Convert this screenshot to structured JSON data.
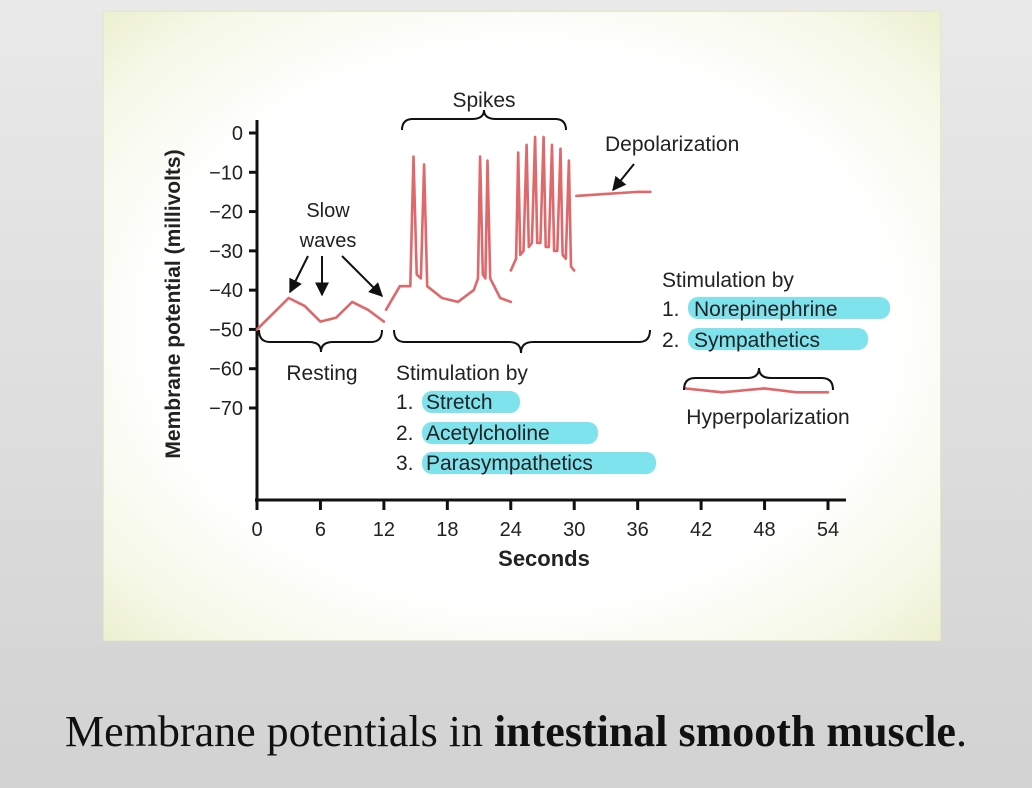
{
  "caption": {
    "prefix": "Membrane potentials in ",
    "bold": "intestinal smooth muscle",
    "suffix": "."
  },
  "chart_data": {
    "type": "line",
    "xlabel": "Seconds",
    "ylabel": "Membrane potential (millivolts)",
    "xlim": [
      0,
      54
    ],
    "ylim": [
      -70,
      0
    ],
    "x_ticks": [
      0,
      6,
      12,
      18,
      24,
      30,
      36,
      42,
      48,
      54
    ],
    "y_ticks": [
      0,
      -10,
      -20,
      -30,
      -40,
      -50,
      -60,
      -70
    ],
    "x_tick_labels": [
      "0",
      "6",
      "12",
      "18",
      "24",
      "30",
      "36",
      "42",
      "48",
      "54"
    ],
    "y_tick_labels": [
      "0",
      "−10",
      "−20",
      "−30",
      "−40",
      "−50",
      "−60",
      "−70"
    ],
    "line_color": "#e0686b",
    "highlight_color": "#7fe3ee",
    "series": [
      {
        "values": [
          [
            0,
            -50
          ],
          [
            1.5,
            -46
          ],
          [
            3,
            -42
          ],
          [
            4.5,
            -44
          ],
          [
            6,
            -48
          ],
          [
            7.5,
            -47
          ],
          [
            9,
            -43
          ],
          [
            10.5,
            -45
          ],
          [
            12,
            -48
          ]
        ]
      },
      {
        "values": [
          [
            12.2,
            -45
          ],
          [
            13.5,
            -39
          ],
          [
            14.5,
            -39
          ],
          [
            14.8,
            -6
          ],
          [
            15.1,
            -36
          ],
          [
            15.5,
            -37
          ],
          [
            15.8,
            -8
          ],
          [
            16.1,
            -39
          ],
          [
            17.5,
            -42
          ],
          [
            19,
            -43
          ],
          [
            20.5,
            -40
          ],
          [
            20.9,
            -37
          ],
          [
            21.1,
            -6
          ],
          [
            21.35,
            -36
          ],
          [
            21.6,
            -37
          ],
          [
            21.8,
            -7
          ],
          [
            22.05,
            -37
          ],
          [
            23,
            -42
          ],
          [
            24,
            -43
          ]
        ]
      },
      {
        "values": [
          [
            24,
            -35
          ],
          [
            24.5,
            -32
          ],
          [
            24.7,
            -5
          ],
          [
            24.9,
            -31
          ],
          [
            25.2,
            -30
          ],
          [
            25.5,
            -3
          ],
          [
            25.7,
            -29
          ],
          [
            26,
            -28
          ],
          [
            26.3,
            -1
          ],
          [
            26.5,
            -28
          ],
          [
            26.8,
            -28
          ],
          [
            27.1,
            -1
          ],
          [
            27.3,
            -29
          ],
          [
            27.6,
            -29
          ],
          [
            27.9,
            -3
          ],
          [
            28.1,
            -30
          ],
          [
            28.4,
            -30
          ],
          [
            28.7,
            -4
          ],
          [
            28.9,
            -31
          ],
          [
            29.2,
            -32
          ],
          [
            29.5,
            -7
          ],
          [
            29.7,
            -34
          ],
          [
            30,
            -35
          ]
        ]
      },
      {
        "values": [
          [
            30.2,
            -16
          ],
          [
            33,
            -15.5
          ],
          [
            36,
            -15
          ],
          [
            37.2,
            -15
          ]
        ]
      },
      {
        "values": [
          [
            40.5,
            -65
          ],
          [
            44,
            -66
          ],
          [
            48,
            -65
          ],
          [
            51,
            -66
          ],
          [
            54,
            -66
          ]
        ]
      }
    ],
    "annotations": {
      "slow_waves": [
        "Slow",
        "waves"
      ],
      "spikes": "Spikes",
      "depolarization": "Depolarization",
      "resting": "Resting",
      "stimulation_left": {
        "heading": "Stimulation by",
        "items": [
          {
            "num": "1.",
            "text": "Stretch"
          },
          {
            "num": "2.",
            "text": "Acetylcholine"
          },
          {
            "num": "3.",
            "text": "Parasympathetics"
          }
        ]
      },
      "stimulation_right": {
        "heading": "Stimulation by",
        "items": [
          {
            "num": "1.",
            "text": "Norepinephrine"
          },
          {
            "num": "2.",
            "text": "Sympathetics"
          }
        ]
      },
      "hyperpolarization": "Hyperpolarization"
    }
  }
}
